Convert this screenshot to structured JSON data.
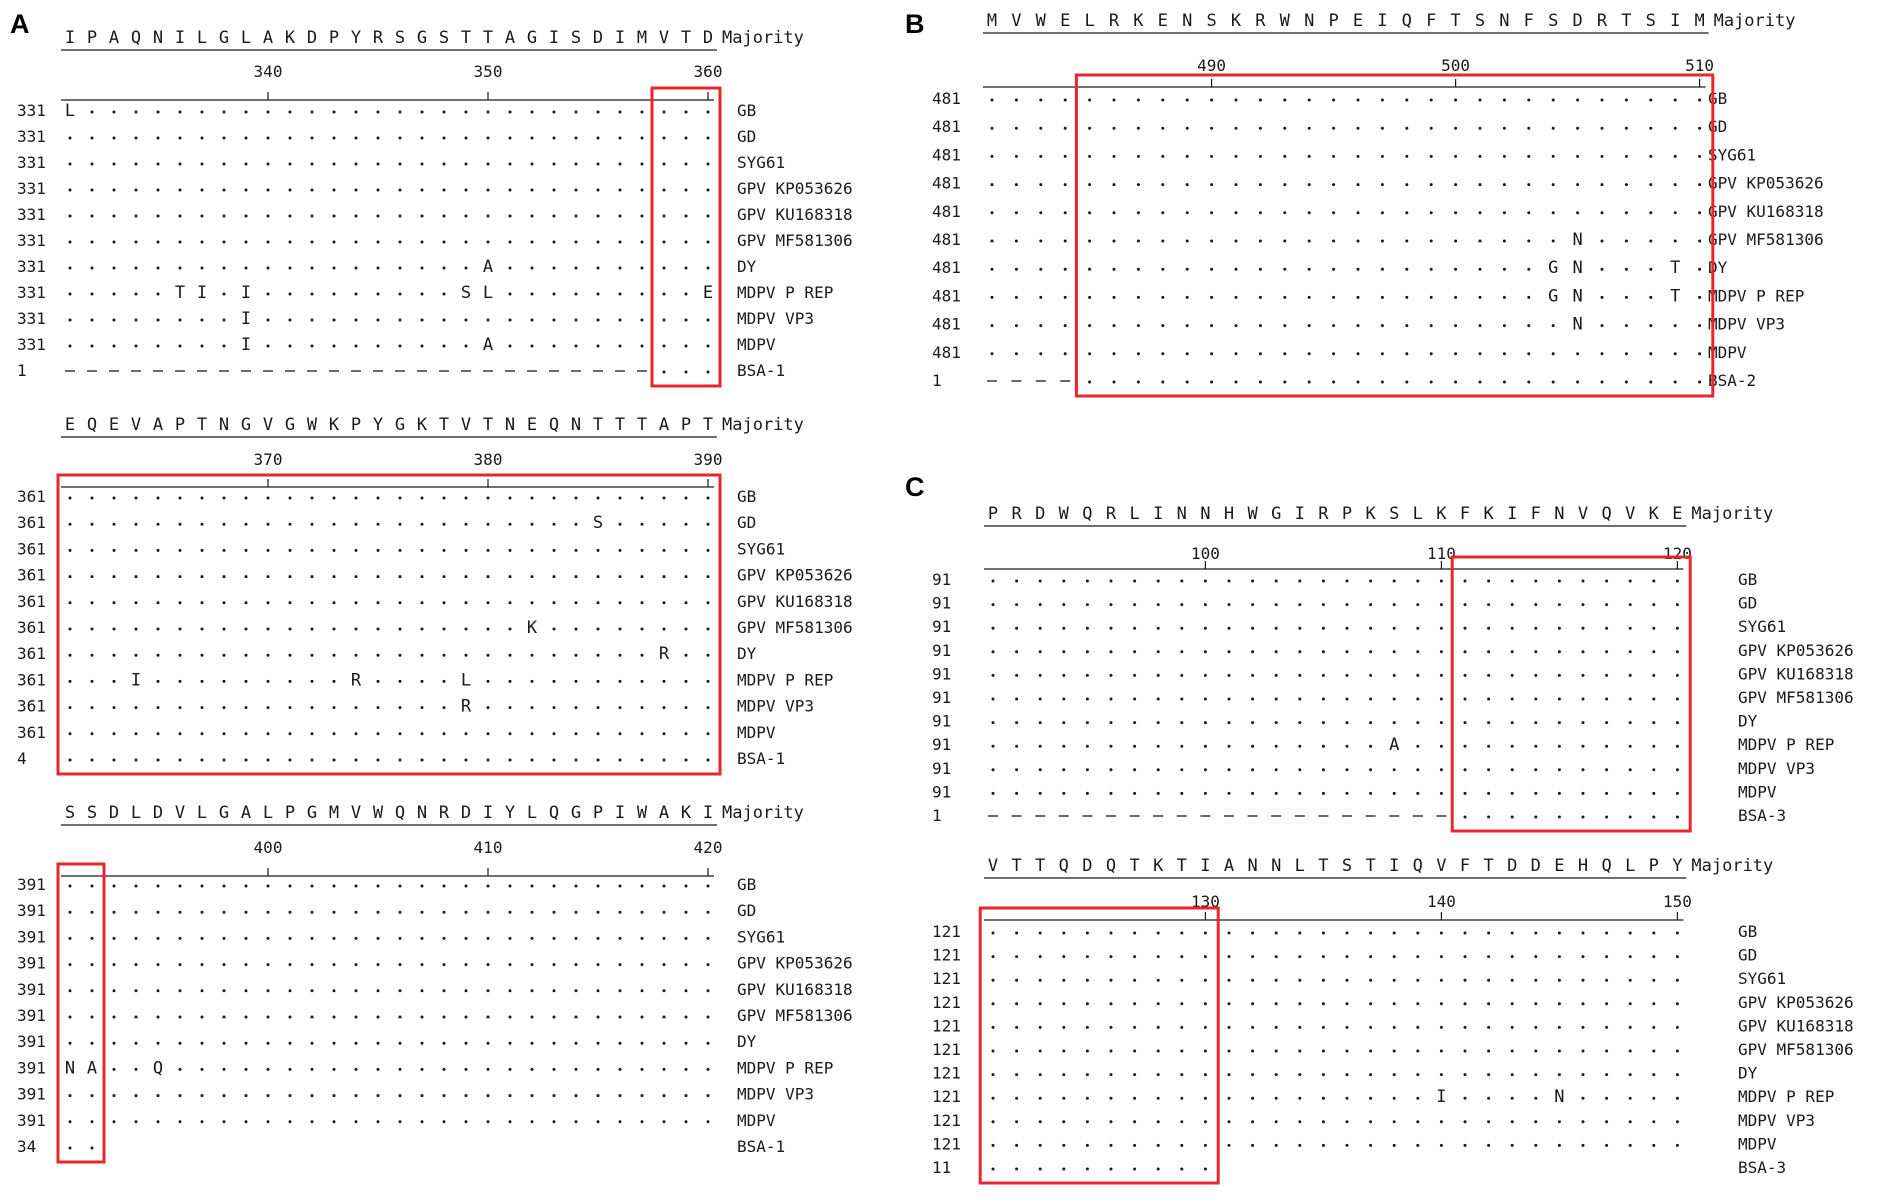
{
  "figure": {
    "background": "#ffffff",
    "text_color": "#1a1a1a",
    "highlight_color": "#e8262d",
    "panels": [
      {
        "label": "A",
        "blocks": [
          {
            "consensus": "IPAQNILGLAKDPYRSGSTTAGISDIMVTD",
            "consensus_label": "Majority",
            "start": 331,
            "tick_labels": [
              "340",
              "350",
              "360"
            ],
            "rows": [
              {
                "num": "331",
                "seq": "L.............................",
                "name": "GB"
              },
              {
                "num": "331",
                "seq": "..............................",
                "name": "GD"
              },
              {
                "num": "331",
                "seq": "..............................",
                "name": "SYG61"
              },
              {
                "num": "331",
                "seq": "..............................",
                "name": "GPV KP053626"
              },
              {
                "num": "331",
                "seq": "..............................",
                "name": "GPV KU168318"
              },
              {
                "num": "331",
                "seq": "..............................",
                "name": "GPV MF581306"
              },
              {
                "num": "331",
                "seq": "...................A..........",
                "name": "DY"
              },
              {
                "num": "331",
                "seq": ".....TI.I.........SL.........E",
                "name": "MDPV P REP"
              },
              {
                "num": "331",
                "seq": "........I.....................",
                "name": "MDPV VP3"
              },
              {
                "num": "331",
                "seq": "........I..........A..........",
                "name": "MDPV"
              },
              {
                "num": "1",
                "seq": "---------------------------...",
                "name": "BSA-1"
              }
            ],
            "highlight": {
              "from_col": 27,
              "to_col": 29
            }
          },
          {
            "consensus": "EQEVAPTNGVGWKPYGKTVTNEQNTTTAPT",
            "consensus_label": "Majority",
            "start": 361,
            "tick_labels": [
              "370",
              "380",
              "390"
            ],
            "rows": [
              {
                "num": "361",
                "seq": "..............................",
                "name": "GB"
              },
              {
                "num": "361",
                "seq": "........................S.....",
                "name": "GD"
              },
              {
                "num": "361",
                "seq": "..............................",
                "name": "SYG61"
              },
              {
                "num": "361",
                "seq": "..............................",
                "name": "GPV KP053626"
              },
              {
                "num": "361",
                "seq": "..............................",
                "name": "GPV KU168318"
              },
              {
                "num": "361",
                "seq": ".....................K........",
                "name": "GPV MF581306"
              },
              {
                "num": "361",
                "seq": "...........................R..",
                "name": "DY"
              },
              {
                "num": "361",
                "seq": "...I.........R....L...........",
                "name": "MDPV P REP"
              },
              {
                "num": "361",
                "seq": "..................R...........",
                "name": "MDPV VP3"
              },
              {
                "num": "361",
                "seq": "..............................",
                "name": "MDPV"
              },
              {
                "num": "4",
                "seq": "..............................",
                "name": "BSA-1"
              }
            ],
            "highlight": {
              "from_col": 0,
              "to_col": 29
            }
          },
          {
            "consensus": "SSDLDVLGALPGMVWQNRDIYLQGPIWAKI",
            "consensus_label": "Majority",
            "start": 391,
            "tick_labels": [
              "400",
              "410",
              "420"
            ],
            "rows": [
              {
                "num": "391",
                "seq": "..............................",
                "name": "GB"
              },
              {
                "num": "391",
                "seq": "..............................",
                "name": "GD"
              },
              {
                "num": "391",
                "seq": "..............................",
                "name": "SYG61"
              },
              {
                "num": "391",
                "seq": "..............................",
                "name": "GPV KP053626"
              },
              {
                "num": "391",
                "seq": "..............................",
                "name": "GPV KU168318"
              },
              {
                "num": "391",
                "seq": "..............................",
                "name": "GPV MF581306"
              },
              {
                "num": "391",
                "seq": "..............................",
                "name": "DY"
              },
              {
                "num": "391",
                "seq": "NA..Q.........................",
                "name": "MDPV P REP"
              },
              {
                "num": "391",
                "seq": "..............................",
                "name": "MDPV VP3"
              },
              {
                "num": "391",
                "seq": "..............................",
                "name": "MDPV"
              },
              {
                "num": "34",
                "seq": "..",
                "name": "BSA-1"
              }
            ],
            "highlight": {
              "from_col": 0,
              "to_col": 1
            }
          }
        ]
      },
      {
        "label": "B",
        "blocks": [
          {
            "consensus": "MVWELRKENSKRWNPEIQFTSNFSDRTSIM",
            "consensus_label": "Majority",
            "start": 481,
            "tick_labels": [
              "490",
              "500",
              "510"
            ],
            "rows": [
              {
                "num": "481",
                "seq": "..............................",
                "name": "GB"
              },
              {
                "num": "481",
                "seq": "..............................",
                "name": "GD"
              },
              {
                "num": "481",
                "seq": "..............................",
                "name": "SYG61"
              },
              {
                "num": "481",
                "seq": "..............................",
                "name": "GPV KP053626"
              },
              {
                "num": "481",
                "seq": "..............................",
                "name": "GPV KU168318"
              },
              {
                "num": "481",
                "seq": "........................N.....",
                "name": "GPV MF581306"
              },
              {
                "num": "481",
                "seq": ".......................GN...T.",
                "name": "DY"
              },
              {
                "num": "481",
                "seq": ".......................GN...T.",
                "name": "MDPV P REP"
              },
              {
                "num": "481",
                "seq": "........................N.....",
                "name": "MDPV VP3"
              },
              {
                "num": "481",
                "seq": "..............................",
                "name": "MDPV"
              },
              {
                "num": "1",
                "seq": "----..........................",
                "name": "BSA-2"
              }
            ],
            "highlight": {
              "from_col": 4,
              "to_col": 29
            }
          }
        ]
      },
      {
        "label": "C",
        "blocks": [
          {
            "consensus": "PRDWQRLINNHWGIRPKSLKFKIFNVQVKE",
            "consensus_label": "Majority",
            "start": 91,
            "tick_labels": [
              "100",
              "110",
              "120"
            ],
            "rows": [
              {
                "num": "91",
                "seq": "..............................",
                "name": "GB"
              },
              {
                "num": "91",
                "seq": "..............................",
                "name": "GD"
              },
              {
                "num": "91",
                "seq": "..............................",
                "name": "SYG61"
              },
              {
                "num": "91",
                "seq": "..............................",
                "name": "GPV KP053626"
              },
              {
                "num": "91",
                "seq": "..............................",
                "name": "GPV KU168318"
              },
              {
                "num": "91",
                "seq": "..............................",
                "name": "GPV MF581306"
              },
              {
                "num": "91",
                "seq": "..............................",
                "name": "DY"
              },
              {
                "num": "91",
                "seq": ".................A............",
                "name": "MDPV P REP"
              },
              {
                "num": "91",
                "seq": "..............................",
                "name": "MDPV VP3"
              },
              {
                "num": "91",
                "seq": "..............................",
                "name": "MDPV"
              },
              {
                "num": "1",
                "seq": "--------------------..........",
                "name": "BSA-3"
              }
            ],
            "highlight": {
              "from_col": 20,
              "to_col": 29
            }
          },
          {
            "consensus": "VTTQDQTKTIANNLTSTIQVFTDDEHQLPY",
            "consensus_label": "Majority",
            "start": 121,
            "tick_labels": [
              "130",
              "140",
              "150"
            ],
            "rows": [
              {
                "num": "121",
                "seq": "..............................",
                "name": "GB"
              },
              {
                "num": "121",
                "seq": "..............................",
                "name": "GD"
              },
              {
                "num": "121",
                "seq": "..............................",
                "name": "SYG61"
              },
              {
                "num": "121",
                "seq": "..............................",
                "name": "GPV KP053626"
              },
              {
                "num": "121",
                "seq": "..............................",
                "name": "GPV KU168318"
              },
              {
                "num": "121",
                "seq": "..............................",
                "name": "GPV MF581306"
              },
              {
                "num": "121",
                "seq": "..............................",
                "name": "DY"
              },
              {
                "num": "121",
                "seq": "...................I....N.....",
                "name": "MDPV P REP"
              },
              {
                "num": "121",
                "seq": "..............................",
                "name": "MDPV VP3"
              },
              {
                "num": "121",
                "seq": "..............................",
                "name": "MDPV"
              },
              {
                "num": "11",
                "seq": "..........",
                "name": "BSA-3"
              }
            ],
            "highlight": {
              "from_col": 0,
              "to_col": 9
            }
          }
        ]
      }
    ]
  }
}
